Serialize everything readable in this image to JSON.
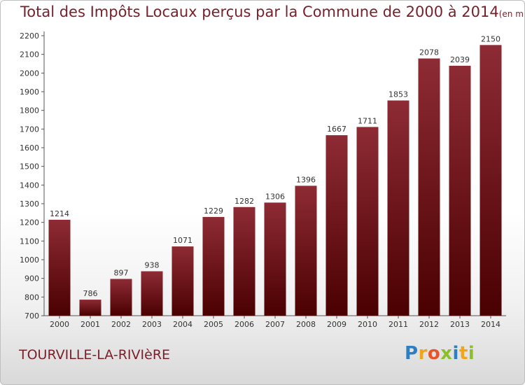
{
  "header": {
    "title": "Total des Impôts Locaux perçus par la Commune de 2000 à 2014",
    "unit": "(en milliers d'€)"
  },
  "footer": {
    "commune": "TOURVILLE-LA-RIVIèRE",
    "logo_letters": [
      "P",
      "r",
      "o",
      "x",
      "i",
      "t",
      "i"
    ],
    "logo_colors": [
      "#2e7fc2",
      "#f0a51a",
      "#e8542a",
      "#8cbf2a",
      "#2e7fc2",
      "#f0a51a",
      "#8cbf2a"
    ]
  },
  "colors": {
    "bar_top": "#8e2b35",
    "bar_bottom": "#4a0000",
    "axis": "#555555",
    "grid": "#d9d9d9",
    "text": "#333333",
    "title": "#7a1f2a"
  },
  "chart_data": {
    "type": "bar",
    "title": "Total des Impôts Locaux perçus par la Commune de 2000 à 2014",
    "subtitle": "(en milliers d'€)",
    "xlabel": "",
    "ylabel": "",
    "categories": [
      "2000",
      "2001",
      "2002",
      "2003",
      "2004",
      "2005",
      "2006",
      "2007",
      "2008",
      "2009",
      "2010",
      "2011",
      "2012",
      "2013",
      "2014"
    ],
    "values": [
      1214,
      786,
      897,
      938,
      1071,
      1229,
      1282,
      1306,
      1396,
      1667,
      1711,
      1853,
      2078,
      2039,
      2150
    ],
    "data_labels": [
      "1214",
      "786",
      "897",
      "938",
      "1071",
      "1229",
      "1282",
      "1306",
      "1396",
      "1667",
      "1711",
      "1853",
      "2078",
      "2039",
      "2150"
    ],
    "yticks": [
      "700",
      "800",
      "900",
      "1000",
      "1100",
      "1200",
      "1300",
      "1400",
      "1500",
      "1600",
      "1700",
      "1800",
      "1900",
      "2000",
      "2100",
      "2200"
    ],
    "ylim": [
      700,
      2200
    ],
    "grid": false
  }
}
